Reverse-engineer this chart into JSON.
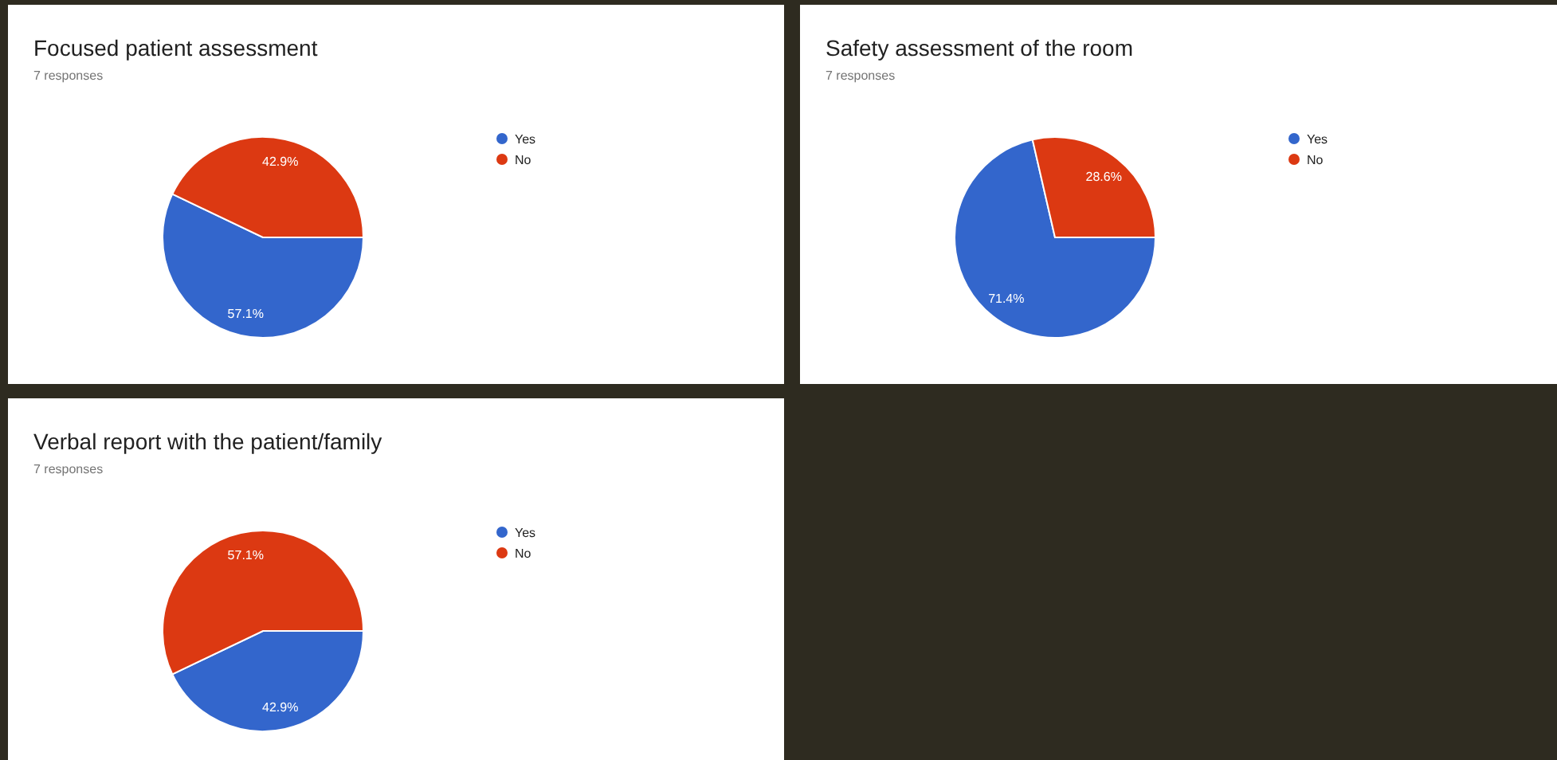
{
  "chart_data": [
    {
      "type": "pie",
      "title": "Focused patient assessment",
      "subtitle": "7 responses",
      "categories": [
        "Yes",
        "No"
      ],
      "values": [
        57.1,
        42.9
      ],
      "colors": [
        "#3366cc",
        "#dc3912"
      ],
      "value_labels": [
        "57.1%",
        "42.9%"
      ],
      "legend": "right"
    },
    {
      "type": "pie",
      "title": "Safety assessment of the room",
      "subtitle": "7 responses",
      "categories": [
        "Yes",
        "No"
      ],
      "values": [
        71.4,
        28.6
      ],
      "colors": [
        "#3366cc",
        "#dc3912"
      ],
      "value_labels": [
        "71.4%",
        "28.6%"
      ],
      "legend": "right"
    },
    {
      "type": "pie",
      "title": "Verbal report with the patient/family",
      "subtitle": "7 responses",
      "categories": [
        "Yes",
        "No"
      ],
      "values": [
        42.9,
        57.1
      ],
      "colors": [
        "#3366cc",
        "#dc3912"
      ],
      "value_labels": [
        "42.9%",
        "57.1%"
      ],
      "legend": "right"
    }
  ]
}
